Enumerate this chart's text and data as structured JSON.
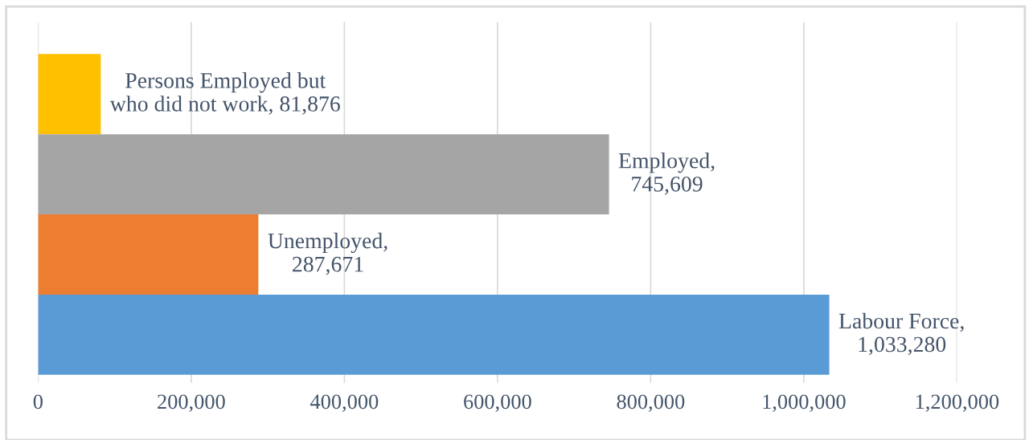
{
  "chart_data": {
    "type": "bar",
    "orientation": "horizontal",
    "categories": [
      null,
      null,
      null,
      null
    ],
    "values": [
      81876,
      745609,
      287671,
      1033280
    ],
    "colors": [
      "#ffc000",
      "#a5a5a5",
      "#ed7d31",
      "#5b9bd5"
    ],
    "value_labels": [
      "Persons Employed but who did not work, 81,876",
      "Employed, 745,609",
      "Unemployed, 287,671",
      "Labour Force, 1,033,280"
    ],
    "xlim": [
      0,
      1200000
    ],
    "xticks": [
      {
        "value": 0,
        "label": "0"
      },
      {
        "value": 200000,
        "label": "200,000"
      },
      {
        "value": 400000,
        "label": "400,000"
      },
      {
        "value": 600000,
        "label": "600,000"
      },
      {
        "value": 800000,
        "label": "800,000"
      },
      {
        "value": 1000000,
        "label": "1,000,000"
      },
      {
        "value": 1200000,
        "label": "1,200,000"
      }
    ],
    "grid": "x",
    "tick_labels": "x"
  }
}
